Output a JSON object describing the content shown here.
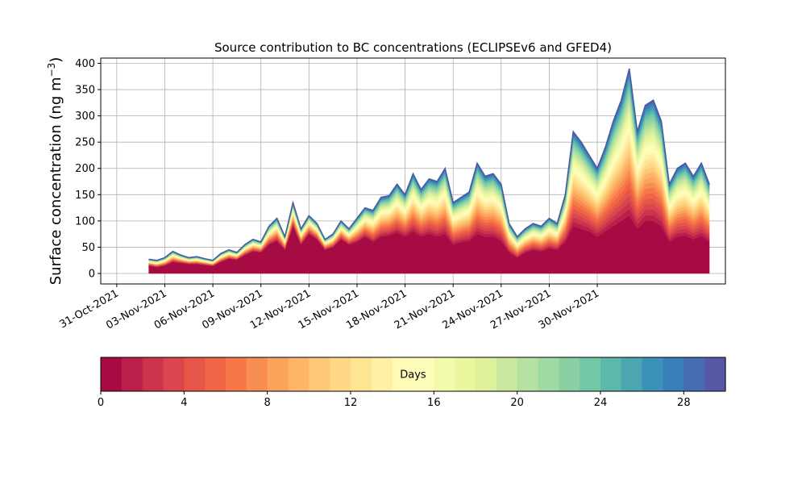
{
  "chart_data": {
    "type": "area",
    "stacked": true,
    "title": "Source contribution to BC concentrations (ECLIPSEv6 and GFED4)",
    "ylabel_main": "Surface concentration (ng m",
    "ylabel_sup": "−3",
    "ylabel_close": ")",
    "xlabel": "",
    "ylim": [
      -20,
      410
    ],
    "xlim": [
      "2021-10-30",
      "2021-12-08"
    ],
    "grid": true,
    "y_ticks": [
      "0",
      "50",
      "100",
      "150",
      "200",
      "250",
      "300",
      "350",
      "400"
    ],
    "x_ticks": [
      "31-Oct-2021",
      "03-Nov-2021",
      "06-Nov-2021",
      "09-Nov-2021",
      "12-Nov-2021",
      "15-Nov-2021",
      "18-Nov-2021",
      "21-Nov-2021",
      "24-Nov-2021",
      "27-Nov-2021",
      "30-Nov-2021"
    ],
    "series_description": "Total surface concentration over time, stacked by source age (days) 0–30; fresh emissions (0–1 day) at bottom",
    "total": {
      "x": [
        "2021-11-02T00",
        "2021-11-02T12",
        "2021-11-03T00",
        "2021-11-03T12",
        "2021-11-04T00",
        "2021-11-04T12",
        "2021-11-05T00",
        "2021-11-05T12",
        "2021-11-06T00",
        "2021-11-06T12",
        "2021-11-07T00",
        "2021-11-07T12",
        "2021-11-08T00",
        "2021-11-08T12",
        "2021-11-09T00",
        "2021-11-09T12",
        "2021-11-10T00",
        "2021-11-10T12",
        "2021-11-11T00",
        "2021-11-11T12",
        "2021-11-12T00",
        "2021-11-12T12",
        "2021-11-13T00",
        "2021-11-13T12",
        "2021-11-14T00",
        "2021-11-14T12",
        "2021-11-15T00",
        "2021-11-15T12",
        "2021-11-16T00",
        "2021-11-16T12",
        "2021-11-17T00",
        "2021-11-17T12",
        "2021-11-18T00",
        "2021-11-18T12",
        "2021-11-19T00",
        "2021-11-19T12",
        "2021-11-20T00",
        "2021-11-20T12",
        "2021-11-21T00",
        "2021-11-21T12",
        "2021-11-22T00",
        "2021-11-22T12",
        "2021-11-23T00",
        "2021-11-23T12",
        "2021-11-24T00",
        "2021-11-24T12",
        "2021-11-25T00",
        "2021-11-25T12",
        "2021-11-26T00",
        "2021-11-26T12",
        "2021-11-27T00",
        "2021-11-27T12",
        "2021-11-28T00",
        "2021-11-28T12",
        "2021-11-29T00",
        "2021-11-29T12",
        "2021-11-30T00",
        "2021-11-30T12",
        "2021-12-01T00",
        "2021-12-01T12",
        "2021-12-02T00",
        "2021-12-02T12",
        "2021-12-03T00",
        "2021-12-03T12",
        "2021-12-04T00",
        "2021-12-04T12",
        "2021-12-05T00",
        "2021-12-05T12",
        "2021-12-06T00",
        "2021-12-06T12",
        "2021-12-07T00"
      ],
      "values": [
        27,
        25,
        30,
        42,
        35,
        30,
        32,
        28,
        25,
        38,
        45,
        40,
        55,
        65,
        60,
        90,
        105,
        70,
        135,
        85,
        110,
        95,
        65,
        75,
        100,
        85,
        105,
        125,
        120,
        145,
        148,
        170,
        150,
        190,
        160,
        180,
        175,
        200,
        135,
        145,
        155,
        210,
        185,
        190,
        170,
        95,
        70,
        85,
        95,
        90,
        105,
        95,
        150,
        270,
        250,
        225,
        200,
        240,
        290,
        330,
        390,
        270,
        320,
        330,
        290,
        170,
        200,
        210,
        185,
        210,
        170
      ]
    },
    "fresh_component_values": [
      15,
      12,
      15,
      22,
      20,
      18,
      18,
      16,
      14,
      22,
      28,
      26,
      35,
      42,
      40,
      55,
      62,
      45,
      90,
      55,
      75,
      65,
      45,
      50,
      65,
      55,
      60,
      70,
      60,
      70,
      72,
      78,
      70,
      80,
      70,
      75,
      70,
      75,
      55,
      60,
      62,
      75,
      70,
      70,
      62,
      40,
      30,
      40,
      45,
      42,
      48,
      45,
      60,
      90,
      85,
      80,
      70,
      80,
      90,
      100,
      110,
      85,
      100,
      100,
      90,
      60,
      70,
      72,
      65,
      72,
      60
    ],
    "colorbar": {
      "label": "Days",
      "min": 0,
      "max": 30,
      "ticks": [
        "0",
        "4",
        "8",
        "12",
        "16",
        "20",
        "24",
        "28"
      ],
      "colormap": "Spectral"
    }
  }
}
